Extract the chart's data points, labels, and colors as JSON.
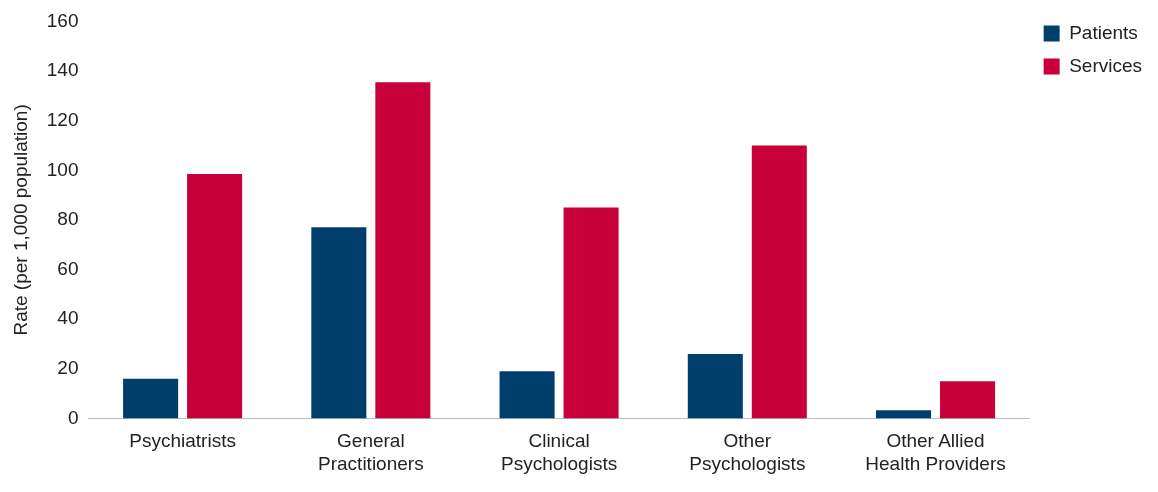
{
  "chart_data": {
    "type": "bar",
    "ylabel": "Rate (per 1,000 population)",
    "categories": [
      "Psychiatrists",
      "General Practitioners",
      "Clinical Psychologists",
      "Other Psychologists",
      "Other Allied Health Providers"
    ],
    "series": [
      {
        "name": "Patients",
        "color": "#003f6b",
        "values": [
          16,
          77,
          19,
          26,
          3.3
        ]
      },
      {
        "name": "Services",
        "color": "#c8003a",
        "values": [
          98.5,
          135.5,
          85,
          110,
          15
        ]
      }
    ],
    "ylim": [
      0,
      160
    ],
    "yticks": [
      0,
      20,
      40,
      60,
      80,
      100,
      120,
      140,
      160
    ],
    "grid": false,
    "legend": "top right"
  }
}
